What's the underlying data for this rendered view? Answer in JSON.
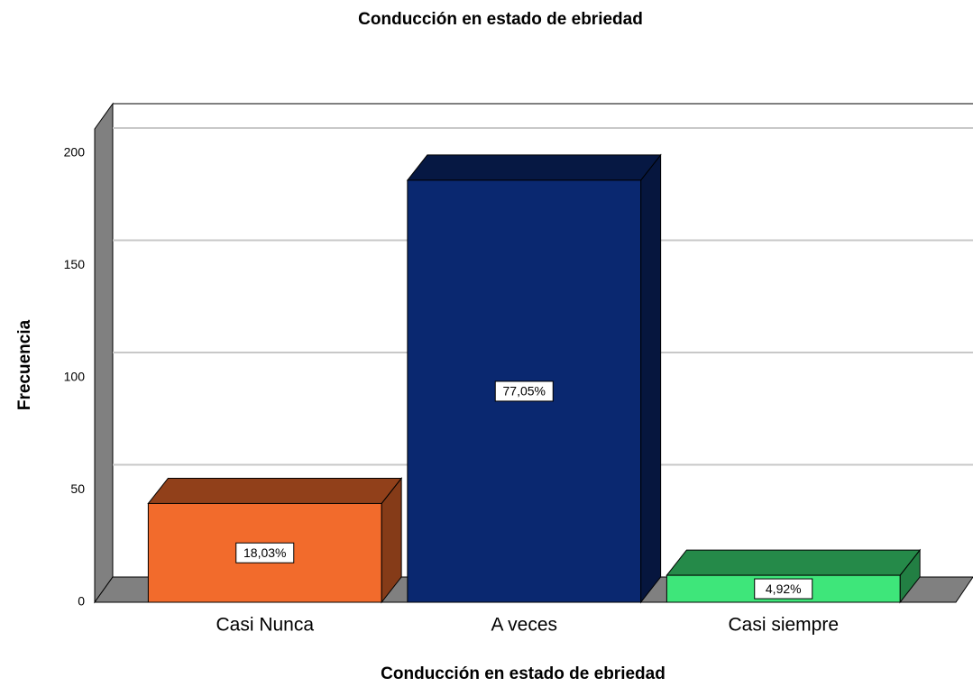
{
  "chart_data": {
    "type": "bar3d",
    "title": "Conducción en estado de ebriedad",
    "x_label": "Conducción en estado de ebriedad",
    "y_label": "Frecuencia",
    "categories": [
      "Casi Nunca",
      "A veces",
      "Casi siempre"
    ],
    "values": [
      44,
      188,
      12
    ],
    "colors": [
      "#f26b2c",
      "#0a2870",
      "#3ee67a"
    ],
    "percent_values": [
      18.03,
      77.05,
      4.92
    ],
    "percent_labels": [
      "18,03%",
      "77,05%",
      "4,92%"
    ],
    "ylim": [
      0,
      211
    ],
    "yticks": [
      0,
      50,
      100,
      150,
      200
    ],
    "grid": true
  }
}
